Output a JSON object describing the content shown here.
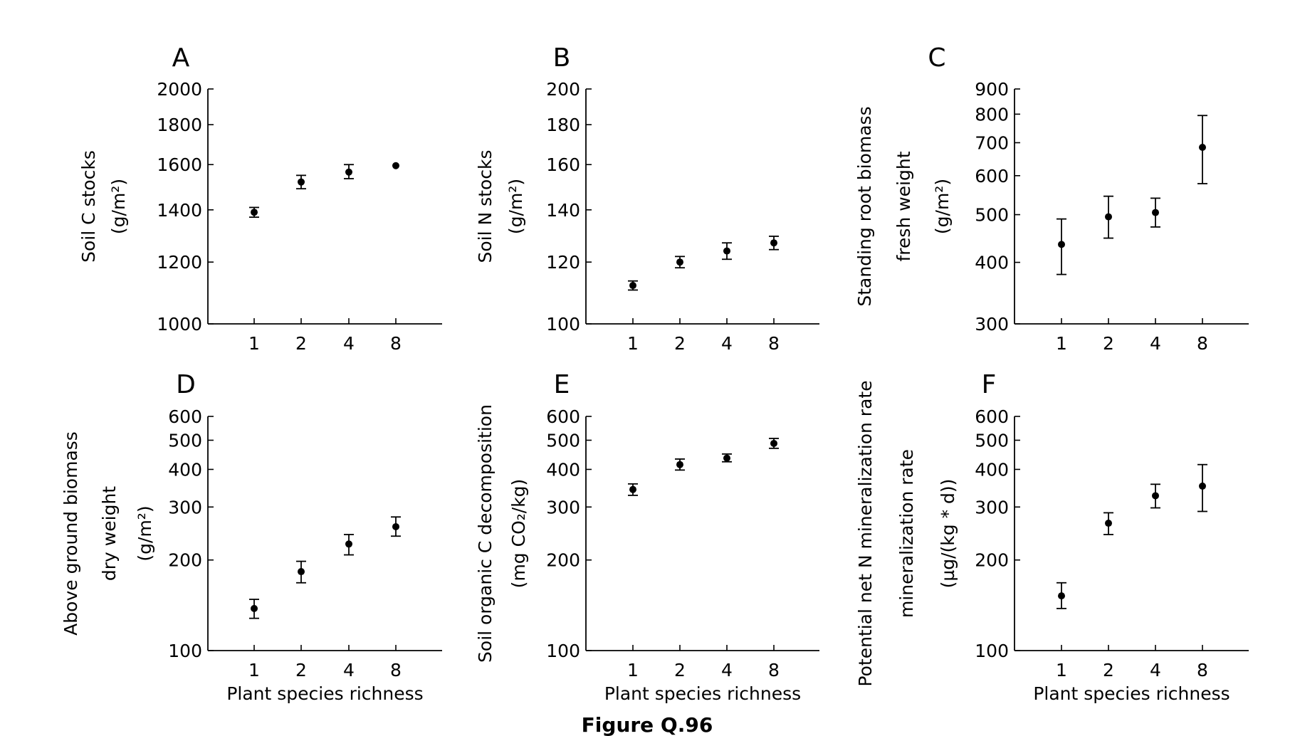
{
  "figure": {
    "caption": "Figure Q.96"
  },
  "chart_data": [
    {
      "panel": "A",
      "type": "scatter",
      "yscale": "log",
      "categories": [
        "1",
        "2",
        "4",
        "8"
      ],
      "values": [
        1390,
        1520,
        1565,
        1595
      ],
      "err_low": [
        1370,
        1490,
        1535,
        1595
      ],
      "err_high": [
        1410,
        1550,
        1600,
        1595
      ],
      "ylim": [
        1000,
        2000
      ],
      "yticks": [
        1000,
        1200,
        1400,
        1600,
        1800,
        2000
      ],
      "ytick_labels": [
        "1000",
        "1200",
        "1400",
        "1600",
        "1800",
        "2000"
      ],
      "ylabel": [
        "Soil C stocks",
        "(g/m²)"
      ],
      "xlabel": ""
    },
    {
      "panel": "B",
      "type": "scatter",
      "yscale": "log",
      "categories": [
        "1",
        "2",
        "4",
        "8"
      ],
      "values": [
        112,
        120,
        124,
        127
      ],
      "err_low": [
        110.5,
        118,
        121,
        124.5
      ],
      "err_high": [
        113.5,
        122,
        127,
        129.5
      ],
      "ylim": [
        100,
        200
      ],
      "yticks": [
        100,
        120,
        140,
        160,
        180,
        200
      ],
      "ytick_labels": [
        "100",
        "120",
        "140",
        "160",
        "180",
        "200"
      ],
      "ylabel": [
        "Soil N stocks",
        "(g/m²)"
      ],
      "xlabel": ""
    },
    {
      "panel": "C",
      "type": "scatter",
      "yscale": "log",
      "categories": [
        "1",
        "2",
        "4",
        "8"
      ],
      "values": [
        435,
        495,
        505,
        685
      ],
      "err_low": [
        378,
        448,
        472,
        578
      ],
      "err_high": [
        490,
        545,
        540,
        795
      ],
      "ylim": [
        300,
        900
      ],
      "yticks": [
        300,
        400,
        500,
        600,
        700,
        800,
        900
      ],
      "ytick_labels": [
        "300",
        "400",
        "500",
        "600",
        "700",
        "800",
        "900"
      ],
      "ylabel": [
        "Standing root biomass",
        "fresh weight",
        "(g/m²)"
      ],
      "xlabel": ""
    },
    {
      "panel": "D",
      "type": "scatter",
      "yscale": "log",
      "categories": [
        "1",
        "2",
        "4",
        "8"
      ],
      "values": [
        138,
        183,
        226,
        258
      ],
      "err_low": [
        128,
        168,
        208,
        240
      ],
      "err_high": [
        148,
        198,
        243,
        278
      ],
      "ylim": [
        100,
        600
      ],
      "yticks": [
        100,
        200,
        300,
        400,
        500,
        600
      ],
      "ytick_labels": [
        "100",
        "200",
        "300",
        "400",
        "500",
        "600"
      ],
      "ylabel": [
        "Above ground biomass",
        "dry weight",
        "(g/m²)"
      ],
      "xlabel": "Plant species richness"
    },
    {
      "panel": "E",
      "type": "scatter",
      "yscale": "log",
      "categories": [
        "1",
        "2",
        "4",
        "8"
      ],
      "values": [
        343,
        415,
        436,
        488
      ],
      "err_low": [
        328,
        398,
        424,
        470
      ],
      "err_high": [
        358,
        433,
        450,
        507
      ],
      "ylim": [
        100,
        600
      ],
      "yticks": [
        100,
        200,
        300,
        400,
        500,
        600
      ],
      "ytick_labels": [
        "100",
        "200",
        "300",
        "400",
        "500",
        "600"
      ],
      "ylabel": [
        "Soil organic C decomposition",
        "(mg CO₂/kg)"
      ],
      "xlabel": "Plant species richness"
    },
    {
      "panel": "F",
      "type": "scatter",
      "yscale": "log",
      "categories": [
        "1",
        "2",
        "4",
        "8"
      ],
      "values": [
        152,
        265,
        327,
        352
      ],
      "err_low": [
        138,
        243,
        298,
        290
      ],
      "err_high": [
        168,
        287,
        357,
        415
      ],
      "ylim": [
        100,
        600
      ],
      "yticks": [
        100,
        200,
        300,
        400,
        500,
        600
      ],
      "ytick_labels": [
        "100",
        "200",
        "300",
        "400",
        "500",
        "600"
      ],
      "ylabel": [
        "Potential net N mineralization rate",
        "mineralization rate",
        "(µg/(kg * d))"
      ],
      "xlabel": "Plant species richness"
    }
  ]
}
